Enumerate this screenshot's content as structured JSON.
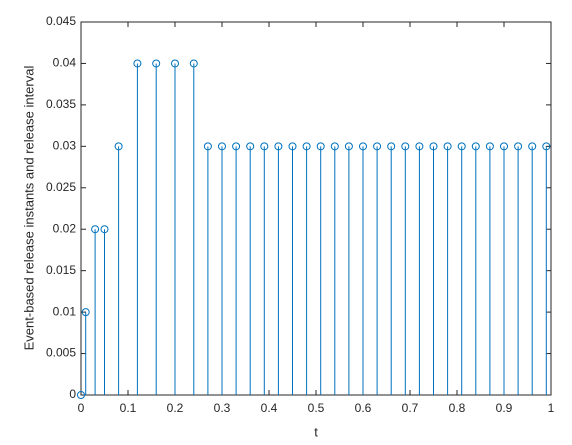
{
  "chart_data": {
    "type": "stem",
    "xlabel": "t",
    "ylabel": "Event-based release instants and release interval",
    "x": [
      0,
      0.01,
      0.03,
      0.05,
      0.08,
      0.12,
      0.16,
      0.2,
      0.24,
      0.27,
      0.3,
      0.33,
      0.36,
      0.39,
      0.42,
      0.45,
      0.48,
      0.51,
      0.54,
      0.57,
      0.6,
      0.63,
      0.66,
      0.69,
      0.72,
      0.75,
      0.78,
      0.81,
      0.84,
      0.87,
      0.9,
      0.93,
      0.96,
      0.99
    ],
    "values": [
      0,
      0.01,
      0.02,
      0.02,
      0.03,
      0.04,
      0.04,
      0.04,
      0.04,
      0.03,
      0.03,
      0.03,
      0.03,
      0.03,
      0.03,
      0.03,
      0.03,
      0.03,
      0.03,
      0.03,
      0.03,
      0.03,
      0.03,
      0.03,
      0.03,
      0.03,
      0.03,
      0.03,
      0.03,
      0.03,
      0.03,
      0.03,
      0.03,
      0.03
    ],
    "color": "#0072bd",
    "xlim": [
      0,
      1
    ],
    "xticks": [
      0,
      0.1,
      0.2,
      0.3,
      0.4,
      0.5,
      0.6,
      0.7,
      0.8,
      0.9,
      1
    ],
    "ylim": [
      0,
      0.045
    ],
    "yticks": [
      0,
      0.005,
      0.01,
      0.015,
      0.02,
      0.025,
      0.03,
      0.035,
      0.04,
      0.045
    ],
    "grid": false
  }
}
